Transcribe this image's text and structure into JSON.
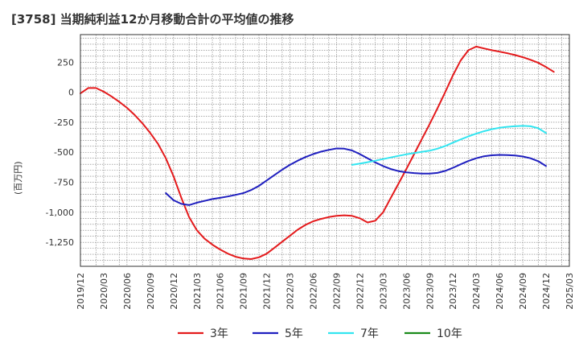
{
  "chart_data": {
    "type": "line",
    "title": "[3758]  当期純利益12か月移動合計の平均値の推移",
    "ylabel": "(百万円)",
    "xlabel": "",
    "ylim": [
      -1450,
      480
    ],
    "yticks": [
      250,
      0,
      -250,
      -500,
      -750,
      -1000,
      -1250
    ],
    "ytick_labels": [
      "250",
      "0",
      "-250",
      "-500",
      "-750",
      "-1,000",
      "-1,250"
    ],
    "x_range": [
      "2019-12",
      "2025-03"
    ],
    "xtick_labels": [
      "2019/12",
      "2020/03",
      "2020/06",
      "2020/09",
      "2020/12",
      "2021/03",
      "2021/06",
      "2021/09",
      "2021/12",
      "2022/03",
      "2022/06",
      "2022/09",
      "2022/12",
      "2023/03",
      "2023/06",
      "2023/09",
      "2023/12",
      "2024/03",
      "2024/06",
      "2024/09",
      "2024/12",
      "2025/03"
    ],
    "grid": true,
    "legend_position": "bottom",
    "series": [
      {
        "name": "3年",
        "color": "#e41a1c",
        "points": [
          [
            "2019-12",
            -10
          ],
          [
            "2020-01",
            35
          ],
          [
            "2020-02",
            35
          ],
          [
            "2020-03",
            5
          ],
          [
            "2020-04",
            -35
          ],
          [
            "2020-05",
            -80
          ],
          [
            "2020-06",
            -130
          ],
          [
            "2020-07",
            -190
          ],
          [
            "2020-08",
            -260
          ],
          [
            "2020-09",
            -340
          ],
          [
            "2020-10",
            -430
          ],
          [
            "2020-11",
            -550
          ],
          [
            "2020-12",
            -700
          ],
          [
            "2021-01",
            -880
          ],
          [
            "2021-02",
            -1040
          ],
          [
            "2021-03",
            -1150
          ],
          [
            "2021-04",
            -1220
          ],
          [
            "2021-05",
            -1270
          ],
          [
            "2021-06",
            -1310
          ],
          [
            "2021-07",
            -1345
          ],
          [
            "2021-08",
            -1370
          ],
          [
            "2021-09",
            -1385
          ],
          [
            "2021-10",
            -1390
          ],
          [
            "2021-11",
            -1375
          ],
          [
            "2021-12",
            -1345
          ],
          [
            "2022-01",
            -1295
          ],
          [
            "2022-02",
            -1245
          ],
          [
            "2022-03",
            -1195
          ],
          [
            "2022-04",
            -1145
          ],
          [
            "2022-05",
            -1105
          ],
          [
            "2022-06",
            -1075
          ],
          [
            "2022-07",
            -1055
          ],
          [
            "2022-08",
            -1040
          ],
          [
            "2022-09",
            -1030
          ],
          [
            "2022-10",
            -1025
          ],
          [
            "2022-11",
            -1030
          ],
          [
            "2022-12",
            -1050
          ],
          [
            "2023-01",
            -1085
          ],
          [
            "2023-02",
            -1070
          ],
          [
            "2023-03",
            -1000
          ],
          [
            "2023-04",
            -880
          ],
          [
            "2023-05",
            -760
          ],
          [
            "2023-06",
            -640
          ],
          [
            "2023-07",
            -515
          ],
          [
            "2023-08",
            -390
          ],
          [
            "2023-09",
            -265
          ],
          [
            "2023-10",
            -135
          ],
          [
            "2023-11",
            0
          ],
          [
            "2023-12",
            140
          ],
          [
            "2024-01",
            265
          ],
          [
            "2024-02",
            350
          ],
          [
            "2024-03",
            380
          ],
          [
            "2024-04",
            365
          ],
          [
            "2024-05",
            350
          ],
          [
            "2024-06",
            338
          ],
          [
            "2024-07",
            325
          ],
          [
            "2024-08",
            310
          ],
          [
            "2024-09",
            292
          ],
          [
            "2024-10",
            270
          ],
          [
            "2024-11",
            245
          ],
          [
            "2024-12",
            210
          ],
          [
            "2025-01",
            170
          ]
        ]
      },
      {
        "name": "5年",
        "color": "#1f1fbf",
        "points": [
          [
            "2020-11",
            -840
          ],
          [
            "2020-12",
            -900
          ],
          [
            "2021-01",
            -930
          ],
          [
            "2021-02",
            -940
          ],
          [
            "2021-03",
            -920
          ],
          [
            "2021-04",
            -905
          ],
          [
            "2021-05",
            -890
          ],
          [
            "2021-06",
            -880
          ],
          [
            "2021-07",
            -868
          ],
          [
            "2021-08",
            -855
          ],
          [
            "2021-09",
            -840
          ],
          [
            "2021-10",
            -815
          ],
          [
            "2021-11",
            -780
          ],
          [
            "2021-12",
            -735
          ],
          [
            "2022-01",
            -690
          ],
          [
            "2022-02",
            -645
          ],
          [
            "2022-03",
            -605
          ],
          [
            "2022-04",
            -570
          ],
          [
            "2022-05",
            -540
          ],
          [
            "2022-06",
            -515
          ],
          [
            "2022-07",
            -495
          ],
          [
            "2022-08",
            -480
          ],
          [
            "2022-09",
            -468
          ],
          [
            "2022-10",
            -470
          ],
          [
            "2022-11",
            -485
          ],
          [
            "2022-12",
            -515
          ],
          [
            "2023-01",
            -550
          ],
          [
            "2023-02",
            -585
          ],
          [
            "2023-03",
            -615
          ],
          [
            "2023-04",
            -640
          ],
          [
            "2023-05",
            -657
          ],
          [
            "2023-06",
            -667
          ],
          [
            "2023-07",
            -673
          ],
          [
            "2023-08",
            -677
          ],
          [
            "2023-09",
            -678
          ],
          [
            "2023-10",
            -672
          ],
          [
            "2023-11",
            -655
          ],
          [
            "2023-12",
            -630
          ],
          [
            "2024-01",
            -600
          ],
          [
            "2024-02",
            -573
          ],
          [
            "2024-03",
            -550
          ],
          [
            "2024-04",
            -533
          ],
          [
            "2024-05",
            -525
          ],
          [
            "2024-06",
            -522
          ],
          [
            "2024-07",
            -523
          ],
          [
            "2024-08",
            -527
          ],
          [
            "2024-09",
            -535
          ],
          [
            "2024-10",
            -550
          ],
          [
            "2024-11",
            -575
          ],
          [
            "2024-12",
            -615
          ]
        ]
      },
      {
        "name": "7年",
        "color": "#33e5f0",
        "points": [
          [
            "2022-11",
            -605
          ],
          [
            "2022-12",
            -595
          ],
          [
            "2023-01",
            -583
          ],
          [
            "2023-02",
            -570
          ],
          [
            "2023-03",
            -557
          ],
          [
            "2023-04",
            -543
          ],
          [
            "2023-05",
            -530
          ],
          [
            "2023-06",
            -517
          ],
          [
            "2023-07",
            -507
          ],
          [
            "2023-08",
            -497
          ],
          [
            "2023-09",
            -487
          ],
          [
            "2023-10",
            -470
          ],
          [
            "2023-11",
            -448
          ],
          [
            "2023-12",
            -420
          ],
          [
            "2024-01",
            -393
          ],
          [
            "2024-02",
            -368
          ],
          [
            "2024-03",
            -345
          ],
          [
            "2024-04",
            -325
          ],
          [
            "2024-05",
            -308
          ],
          [
            "2024-06",
            -296
          ],
          [
            "2024-07",
            -288
          ],
          [
            "2024-08",
            -283
          ],
          [
            "2024-09",
            -280
          ],
          [
            "2024-10",
            -283
          ],
          [
            "2024-11",
            -300
          ],
          [
            "2024-12",
            -340
          ]
        ]
      },
      {
        "name": "10年",
        "color": "#1a8a1a",
        "points": []
      }
    ]
  }
}
